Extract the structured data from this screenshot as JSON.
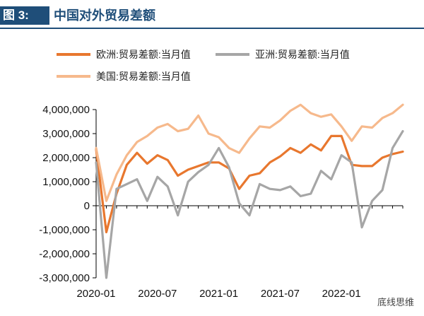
{
  "header": {
    "figure_label": "图 3:",
    "title": "中国对外贸易差额"
  },
  "watermark": "底线思维",
  "chart_data": {
    "type": "line",
    "title": "中国对外贸易差额",
    "categories": [
      "2020-01",
      "2020-02",
      "2020-03",
      "2020-04",
      "2020-05",
      "2020-06",
      "2020-07",
      "2020-08",
      "2020-09",
      "2020-10",
      "2020-11",
      "2020-12",
      "2021-01",
      "2021-02",
      "2021-03",
      "2021-04",
      "2021-05",
      "2021-06",
      "2021-07",
      "2021-08",
      "2021-09",
      "2021-10",
      "2021-11",
      "2021-12",
      "2022-01",
      "2022-02",
      "2022-03",
      "2022-04",
      "2022-05",
      "2022-06",
      "2022-07"
    ],
    "x_tick_labels": [
      "2020-01",
      "2020-07",
      "2021-01",
      "2021-07",
      "2022-01"
    ],
    "x_tick_indices": [
      0,
      6,
      12,
      18,
      24
    ],
    "y_ticks": [
      4000000,
      3000000,
      2000000,
      1000000,
      0,
      -1000000,
      -2000000,
      -3000000
    ],
    "y_tick_labels": [
      "4,000,000",
      "3,000,000",
      "2,000,000",
      "1,000,000",
      "0",
      "-1,000,000",
      "-2,000,000",
      "-3,000,000"
    ],
    "ylim": [
      -3000000,
      4000000
    ],
    "series": [
      {
        "name": "欧洲:贸易差额:当月值",
        "color": "#e8772e",
        "values": [
          2350000,
          -1100000,
          500000,
          1700000,
          2200000,
          1750000,
          2100000,
          1900000,
          1250000,
          1500000,
          1650000,
          1800000,
          1800000,
          1550000,
          700000,
          1250000,
          1350000,
          1800000,
          2050000,
          2400000,
          2200000,
          2550000,
          2300000,
          2900000,
          2900000,
          1700000,
          1650000,
          1650000,
          2000000,
          2150000,
          2250000
        ]
      },
      {
        "name": "亚洲:贸易差额:当月值",
        "color": "#a6a6a6",
        "values": [
          1800000,
          -3000000,
          700000,
          900000,
          1100000,
          200000,
          1200000,
          800000,
          -400000,
          1000000,
          1400000,
          1700000,
          2400000,
          1600000,
          100000,
          -400000,
          900000,
          700000,
          650000,
          800000,
          400000,
          500000,
          1450000,
          1100000,
          2100000,
          1800000,
          -900000,
          200000,
          650000,
          2400000,
          3100000
        ]
      },
      {
        "name": "美国:贸易差额:当月值",
        "color": "#f6b98c",
        "values": [
          2400000,
          200000,
          1300000,
          2100000,
          2650000,
          2900000,
          3250000,
          3400000,
          3100000,
          3200000,
          3750000,
          3000000,
          2850000,
          2400000,
          2200000,
          2800000,
          3300000,
          3250000,
          3550000,
          3950000,
          4200000,
          3850000,
          3700000,
          3800000,
          3300000,
          2700000,
          3300000,
          3250000,
          3650000,
          3850000,
          4200000
        ]
      }
    ]
  }
}
